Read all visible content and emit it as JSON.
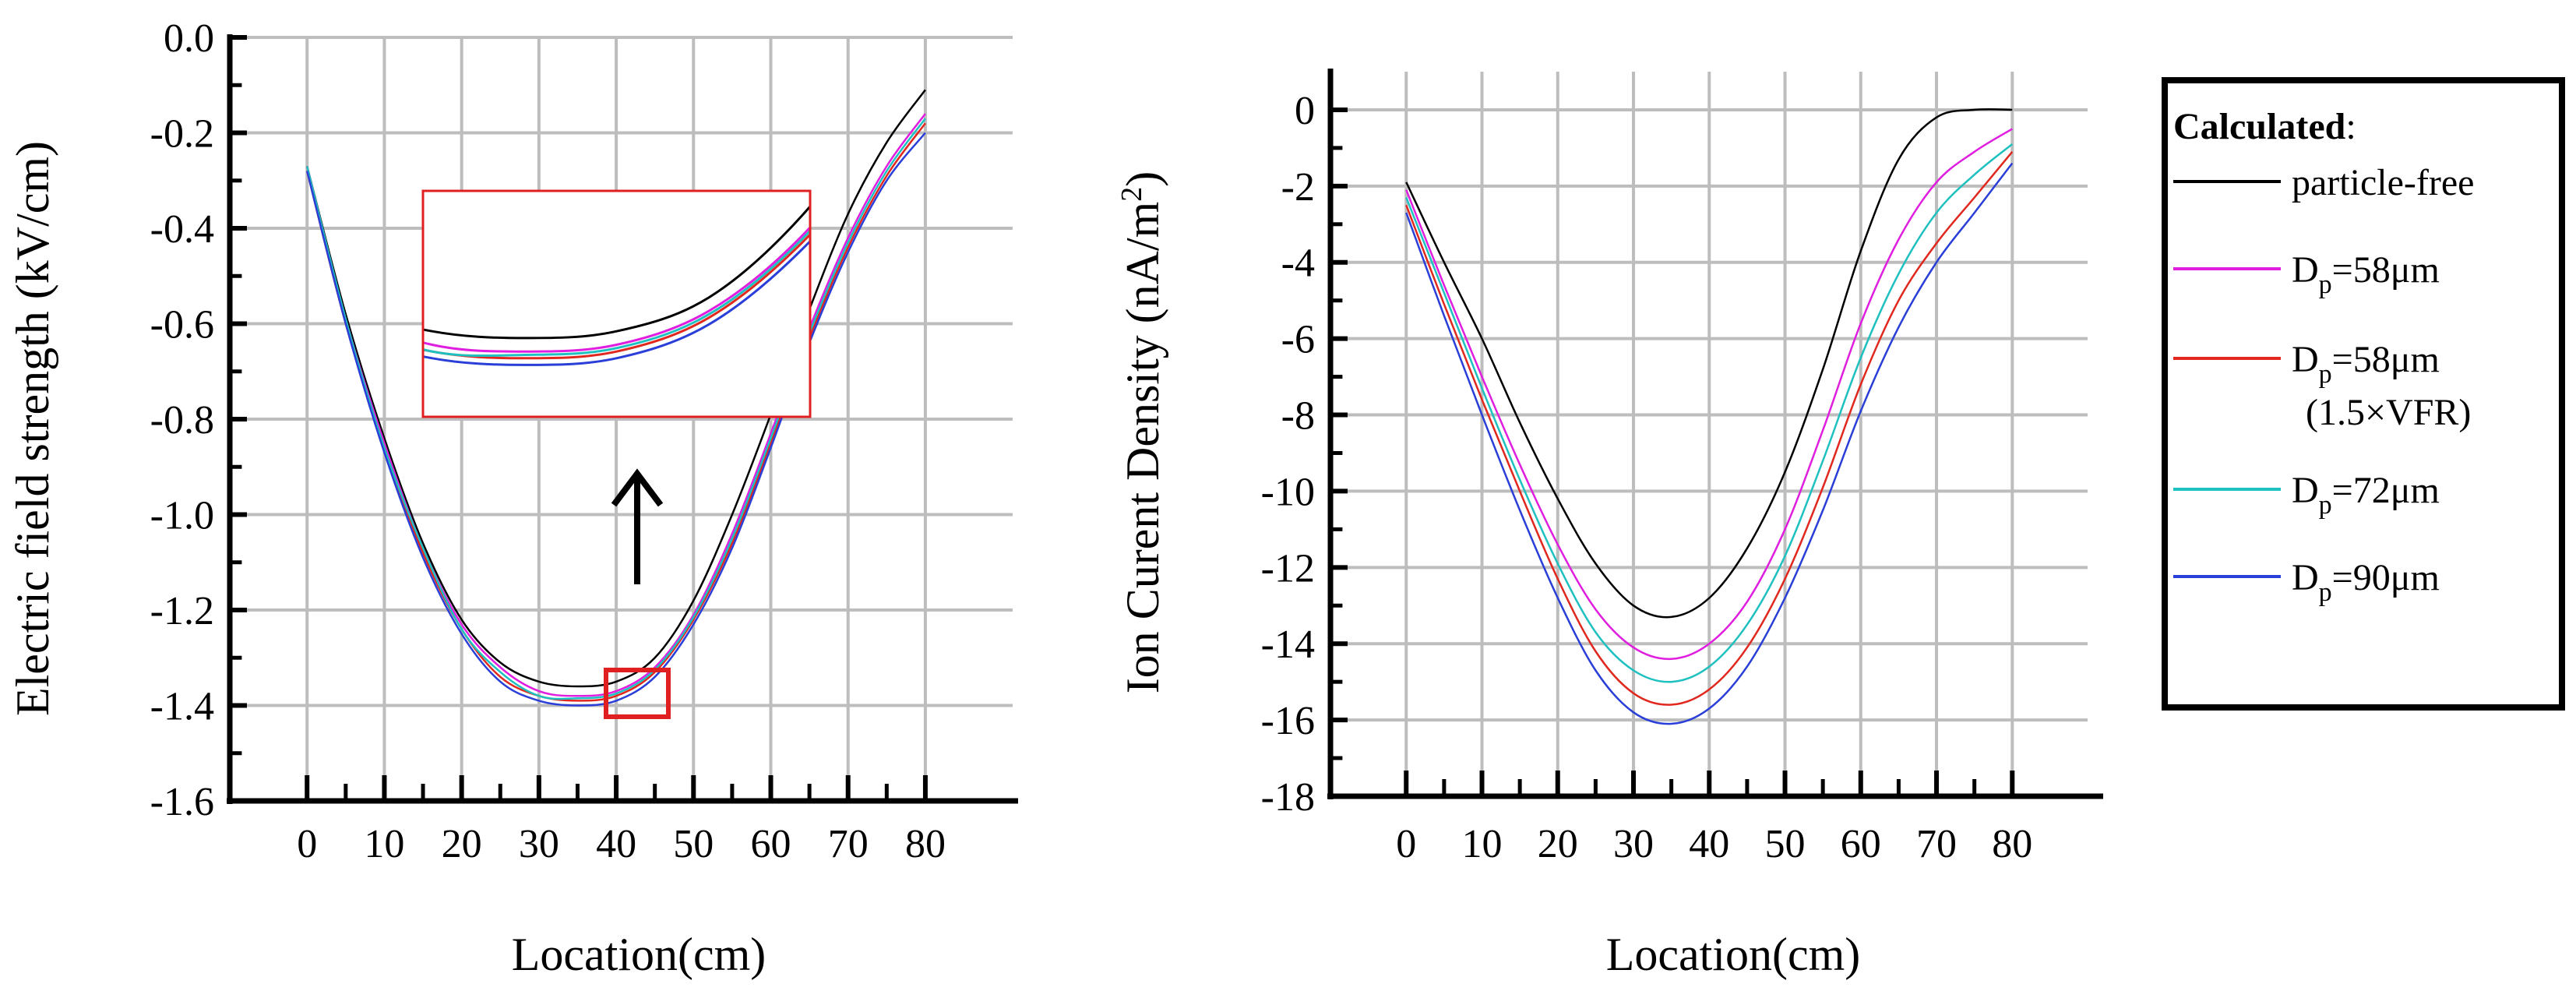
{
  "chart_data": [
    {
      "type": "line",
      "panel": "left",
      "xlabel": "Location(cm)",
      "ylabel": "Electric field strength (kV/cm)",
      "xlim": [
        -10,
        92
      ],
      "ylim": [
        -1.6,
        0.0
      ],
      "xticks": [
        0,
        10,
        20,
        30,
        40,
        50,
        60,
        70,
        80
      ],
      "yticks": [
        0.0,
        -0.2,
        -0.4,
        -0.6,
        -0.8,
        -1.0,
        -1.2,
        -1.4,
        -1.6
      ],
      "xtick_labels": [
        "0",
        "10",
        "20",
        "30",
        "40",
        "50",
        "60",
        "70",
        "80"
      ],
      "ytick_labels": [
        "0.0",
        "-0.2",
        "-0.4",
        "-0.6",
        "-0.8",
        "-1.0",
        "-1.2",
        "-1.4",
        "-1.6"
      ],
      "grid": true,
      "x": [
        0,
        5,
        10,
        15,
        20,
        25,
        30,
        35,
        40,
        45,
        50,
        55,
        60,
        65,
        70,
        75,
        80
      ],
      "series": [
        {
          "name": "particle-free",
          "color": "#000000",
          "values": [
            -0.27,
            -0.58,
            -0.84,
            -1.06,
            -1.22,
            -1.31,
            -1.35,
            -1.36,
            -1.35,
            -1.3,
            -1.18,
            -1.0,
            -0.79,
            -0.57,
            -0.37,
            -0.22,
            -0.11
          ]
        },
        {
          "name": "Dp=58μm",
          "color": "#e01ee0",
          "values": [
            -0.27,
            -0.59,
            -0.85,
            -1.07,
            -1.23,
            -1.32,
            -1.37,
            -1.38,
            -1.37,
            -1.32,
            -1.21,
            -1.04,
            -0.83,
            -0.61,
            -0.42,
            -0.27,
            -0.16
          ]
        },
        {
          "name": "Dp=58μm (1.5×VFR)",
          "color": "#e0281e",
          "values": [
            -0.28,
            -0.6,
            -0.86,
            -1.08,
            -1.24,
            -1.34,
            -1.38,
            -1.39,
            -1.38,
            -1.33,
            -1.22,
            -1.06,
            -0.85,
            -0.63,
            -0.44,
            -0.29,
            -0.18
          ]
        },
        {
          "name": "Dp=72μm",
          "color": "#1ec0c0",
          "values": [
            -0.27,
            -0.59,
            -0.86,
            -1.07,
            -1.24,
            -1.33,
            -1.38,
            -1.385,
            -1.375,
            -1.325,
            -1.215,
            -1.05,
            -0.84,
            -0.62,
            -0.43,
            -0.28,
            -0.17
          ]
        },
        {
          "name": "Dp=90μm",
          "color": "#2a3ed8",
          "values": [
            -0.28,
            -0.6,
            -0.87,
            -1.09,
            -1.25,
            -1.35,
            -1.39,
            -1.4,
            -1.39,
            -1.34,
            -1.23,
            -1.07,
            -0.86,
            -0.64,
            -0.45,
            -0.3,
            -0.2
          ]
        }
      ],
      "annotations": [
        "inset magnification of the curve minimum (red box near x=40)",
        "arrow pointing up to inset"
      ]
    },
    {
      "type": "line",
      "panel": "right",
      "xlabel": "Location(cm)",
      "ylabel_main": "Ion Curent Density (nA/m",
      "ylabel_sup": "2",
      "ylabel_close": ")",
      "xlim": [
        -10,
        92
      ],
      "ylim": [
        -18,
        1
      ],
      "xticks": [
        0,
        10,
        20,
        30,
        40,
        50,
        60,
        70,
        80
      ],
      "yticks": [
        0,
        -2,
        -4,
        -6,
        -8,
        -10,
        -12,
        -14,
        -16,
        -18
      ],
      "xtick_labels": [
        "0",
        "10",
        "20",
        "30",
        "40",
        "50",
        "60",
        "70",
        "80"
      ],
      "ytick_labels": [
        "0",
        "-2",
        "-4",
        "-6",
        "-8",
        "-10",
        "-12",
        "-14",
        "-16",
        "-18"
      ],
      "grid": true,
      "x": [
        0,
        5,
        10,
        15,
        20,
        25,
        30,
        35,
        40,
        45,
        50,
        55,
        60,
        65,
        70,
        75,
        80
      ],
      "series": [
        {
          "name": "particle-free",
          "color": "#000000",
          "values": [
            -1.9,
            -4.0,
            -6.0,
            -8.2,
            -10.2,
            -11.9,
            -13.0,
            -13.3,
            -12.8,
            -11.5,
            -9.5,
            -6.8,
            -3.7,
            -1.3,
            -0.2,
            0.0,
            0.0
          ]
        },
        {
          "name": "Dp=58μm",
          "color": "#e01ee0",
          "values": [
            -2.1,
            -4.6,
            -7.0,
            -9.3,
            -11.4,
            -13.1,
            -14.1,
            -14.4,
            -14.0,
            -12.9,
            -11.0,
            -8.4,
            -5.6,
            -3.4,
            -1.9,
            -1.1,
            -0.5
          ]
        },
        {
          "name": "Dp=58μm (1.5×VFR)",
          "color": "#e0281e",
          "values": [
            -2.5,
            -5.1,
            -7.6,
            -10.0,
            -12.3,
            -14.2,
            -15.3,
            -15.6,
            -15.2,
            -14.1,
            -12.3,
            -9.9,
            -7.2,
            -5.0,
            -3.5,
            -2.3,
            -1.1
          ]
        },
        {
          "name": "Dp=72μm",
          "color": "#1ec0c0",
          "values": [
            -2.3,
            -4.8,
            -7.3,
            -9.7,
            -11.9,
            -13.7,
            -14.7,
            -15.0,
            -14.6,
            -13.5,
            -11.7,
            -9.2,
            -6.5,
            -4.3,
            -2.7,
            -1.7,
            -0.9
          ]
        },
        {
          "name": "Dp=90μm",
          "color": "#2a3ed8",
          "values": [
            -2.7,
            -5.4,
            -8.0,
            -10.5,
            -12.8,
            -14.7,
            -15.8,
            -16.1,
            -15.7,
            -14.6,
            -12.8,
            -10.5,
            -7.9,
            -5.7,
            -4.0,
            -2.7,
            -1.4
          ]
        }
      ]
    }
  ],
  "legend": {
    "heading": "Calculated",
    "heading_colon": ":",
    "entries": [
      {
        "color": "#000000",
        "main": "particle-free",
        "sub": "",
        "rest": "",
        "line2": ""
      },
      {
        "color": "#e01ee0",
        "main": "D",
        "sub": "p",
        "rest": "=58μm",
        "line2": ""
      },
      {
        "color": "#e0281e",
        "main": "D",
        "sub": "p",
        "rest": "=58μm",
        "line2": "(1.5×VFR)"
      },
      {
        "color": "#1ec0c0",
        "main": "D",
        "sub": "p",
        "rest": "=72μm",
        "line2": ""
      },
      {
        "color": "#2a3ed8",
        "main": "D",
        "sub": "p",
        "rest": "=90μm",
        "line2": ""
      }
    ]
  }
}
